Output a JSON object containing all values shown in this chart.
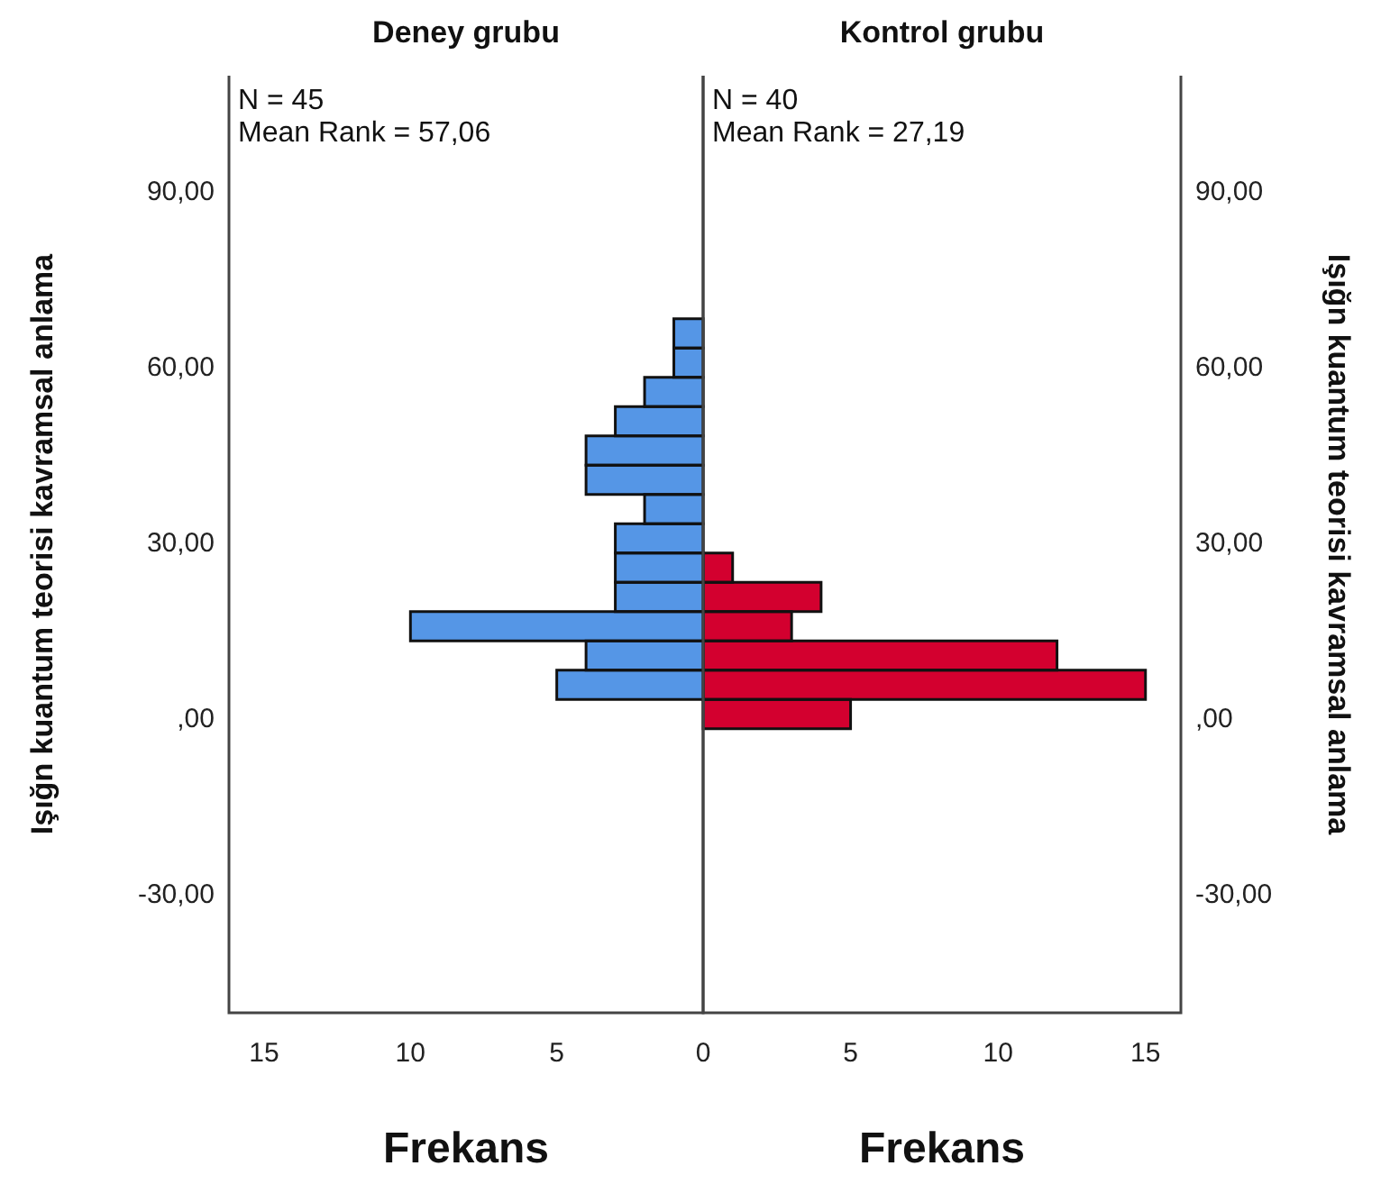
{
  "chart_data": [
    {
      "type": "histogram",
      "orientation": "horizontal",
      "title": "Deney grubu",
      "xlabel": "Frekans",
      "ylabel": "Işığn kuantum teorisi kavramsal anlama",
      "bins": [
        -1.5,
        3.5,
        8.5,
        13.5,
        18.5,
        23.5,
        28.5,
        33.5,
        38.5,
        43.5,
        48.5,
        53.5,
        58.5,
        63.5,
        68.5
      ],
      "values": [
        0,
        5,
        4,
        10,
        3,
        3,
        3,
        2,
        4,
        4,
        3,
        2,
        1,
        1
      ],
      "color": "#5596e6",
      "xlim": [
        16.2,
        0
      ],
      "xticks": [
        0,
        5,
        10,
        15
      ],
      "ylim": [
        -50,
        110
      ],
      "yticks": [
        {
          "value": -30,
          "label": "-30,00"
        },
        {
          "value": 0,
          "label": ",00"
        },
        {
          "value": 30,
          "label": "30,00"
        },
        {
          "value": 60,
          "label": "60,00"
        },
        {
          "value": 90,
          "label": "90,00"
        }
      ],
      "annotations": [
        "N = 45",
        "Mean Rank = 57,06"
      ]
    },
    {
      "type": "histogram",
      "orientation": "horizontal",
      "title": "Kontrol grubu",
      "xlabel": "Frekans",
      "ylabel": "Işığn kuantum teorisi kavramsal anlama",
      "bins": [
        -1.5,
        3.5,
        8.5,
        13.5,
        18.5,
        23.5,
        28.5,
        33.5,
        38.5,
        43.5,
        48.5,
        53.5,
        58.5,
        63.5,
        68.5
      ],
      "values": [
        5,
        15,
        12,
        3,
        4,
        1,
        0,
        0,
        0,
        0,
        0,
        0,
        0,
        0
      ],
      "color": "#d3002f",
      "xlim": [
        0,
        16.2
      ],
      "xticks": [
        5,
        10,
        15
      ],
      "ylim": [
        -50,
        110
      ],
      "yticks": [
        {
          "value": -30,
          "label": "-30,00"
        },
        {
          "value": 0,
          "label": ",00"
        },
        {
          "value": 30,
          "label": "30,00"
        },
        {
          "value": 60,
          "label": "60,00"
        },
        {
          "value": 90,
          "label": "90,00"
        }
      ],
      "annotations": [
        "N = 40",
        "Mean Rank = 27,19"
      ]
    }
  ]
}
